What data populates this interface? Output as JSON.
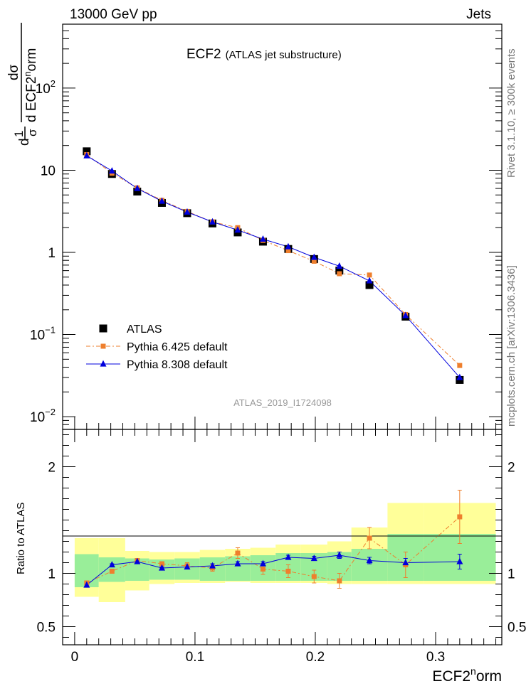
{
  "header": {
    "left": "13000 GeV pp",
    "right": "Jets"
  },
  "side_labels": {
    "rivet": "Rivet 3.1.10, ≥ 300k events",
    "mcplots": "mcplots.cern.ch [arXiv:1306.3436]"
  },
  "title": {
    "main": "ECF2",
    "sub": "(ATLAS jet substructure)"
  },
  "analysis_id": "ATLAS_2019_I1724098",
  "x_axis": {
    "label_base": "ECF2",
    "label_sup": "n",
    "label_rest": "orm",
    "range": [
      -0.01,
      0.355
    ],
    "ticks": [
      0,
      0.1,
      0.2,
      0.3
    ],
    "tick_labels": [
      "0",
      "0.1",
      "0.2",
      "0.3"
    ]
  },
  "y_axis_main": {
    "label": "1/σ dσ/d ECF2norm",
    "label_frac1_num": "1",
    "label_frac1_den": "σ",
    "label_frac2_num": "dσ",
    "label_frac2_den": "d ECF2",
    "label_sup": "n",
    "label_rest": "orm",
    "label_prefix": "d",
    "scale": "log",
    "range": [
      0.007,
      600
    ],
    "tick_labels": [
      {
        "value": 0.01,
        "base": "10",
        "exp": "−2"
      },
      {
        "value": 0.1,
        "base": "10",
        "exp": "−1"
      },
      {
        "value": 1,
        "base": "1",
        "exp": ""
      },
      {
        "value": 10,
        "base": "10",
        "exp": ""
      },
      {
        "value": 100,
        "base": "10",
        "exp": "2"
      }
    ]
  },
  "y_axis_ratio": {
    "label": "Ratio to ATLAS",
    "range": [
      0.33,
      2.35
    ],
    "ticks": [
      0.5,
      1,
      2
    ],
    "tick_labels": [
      "0.5",
      "1",
      "2"
    ]
  },
  "legend": {
    "placement": "lower-left",
    "entries": [
      {
        "label": "ATLAS",
        "series": "atlas"
      },
      {
        "label": "Pythia 6.425 default",
        "series": "py6"
      },
      {
        "label": "Pythia 8.308 default",
        "series": "py8"
      }
    ]
  },
  "colors": {
    "atlas": "#000000",
    "py6": "#ee7f2d",
    "py8": "#0000dd",
    "band_inner": "#99ee99",
    "band_outer": "#ffff99"
  },
  "chart_data": {
    "type": "scatter",
    "title": "ECF2 (ATLAS jet substructure)",
    "xlabel": "ECF2norm",
    "ylabel": "1/σ dσ/d ECF2norm",
    "bins": [
      {
        "lo": 0.0,
        "hi": 0.02
      },
      {
        "lo": 0.02,
        "hi": 0.042
      },
      {
        "lo": 0.042,
        "hi": 0.062
      },
      {
        "lo": 0.062,
        "hi": 0.083
      },
      {
        "lo": 0.083,
        "hi": 0.104
      },
      {
        "lo": 0.104,
        "hi": 0.125
      },
      {
        "lo": 0.125,
        "hi": 0.146
      },
      {
        "lo": 0.146,
        "hi": 0.167
      },
      {
        "lo": 0.167,
        "hi": 0.188
      },
      {
        "lo": 0.188,
        "hi": 0.21
      },
      {
        "lo": 0.21,
        "hi": 0.23
      },
      {
        "lo": 0.23,
        "hi": 0.26
      },
      {
        "lo": 0.26,
        "hi": 0.29
      },
      {
        "lo": 0.29,
        "hi": 0.35
      }
    ],
    "x": [
      0.01,
      0.031,
      0.052,
      0.0725,
      0.0935,
      0.1145,
      0.1355,
      0.1565,
      0.1775,
      0.199,
      0.22,
      0.245,
      0.275,
      0.32
    ],
    "series": [
      {
        "name": "ATLAS",
        "key": "atlas",
        "values": [
          17.0,
          9.0,
          5.5,
          4.0,
          3.0,
          2.25,
          1.75,
          1.35,
          1.1,
          0.83,
          0.6,
          0.4,
          0.165,
          0.028
        ],
        "ratio_band_inner": [
          [
            0.87,
            1.18
          ],
          [
            0.92,
            1.15
          ],
          [
            0.93,
            1.14
          ],
          [
            0.94,
            1.13
          ],
          [
            0.94,
            1.14
          ],
          [
            0.93,
            1.15
          ],
          [
            0.93,
            1.16
          ],
          [
            0.93,
            1.17
          ],
          [
            0.93,
            1.19
          ],
          [
            0.93,
            1.19
          ],
          [
            0.93,
            1.2
          ],
          [
            0.93,
            1.23
          ],
          [
            0.93,
            1.37
          ],
          [
            0.93,
            1.37
          ]
        ],
        "ratio_band_outer": [
          [
            0.78,
            1.33
          ],
          [
            0.73,
            1.33
          ],
          [
            0.84,
            1.21
          ],
          [
            0.9,
            1.2
          ],
          [
            0.91,
            1.2
          ],
          [
            0.91,
            1.22
          ],
          [
            0.92,
            1.23
          ],
          [
            0.91,
            1.24
          ],
          [
            0.91,
            1.27
          ],
          [
            0.91,
            1.27
          ],
          [
            0.9,
            1.3
          ],
          [
            0.9,
            1.43
          ],
          [
            0.9,
            1.66
          ],
          [
            0.9,
            1.66
          ]
        ]
      },
      {
        "name": "Pythia 6.425 default",
        "key": "py6",
        "values": [
          15.5,
          9.2,
          6.1,
          4.3,
          3.15,
          2.35,
          2.0,
          1.4,
          1.05,
          0.78,
          0.55,
          0.53,
          0.175,
          0.042
        ],
        "ratio": [
          0.91,
          1.02,
          1.12,
          1.09,
          1.07,
          1.05,
          1.19,
          1.04,
          1.02,
          0.97,
          0.93,
          1.33,
          1.08,
          1.53
        ],
        "ratio_err": [
          0.02,
          0.02,
          0.02,
          0.02,
          0.03,
          0.03,
          0.05,
          0.05,
          0.06,
          0.06,
          0.07,
          0.1,
          0.12,
          0.25
        ]
      },
      {
        "name": "Pythia 8.308 default",
        "key": "py8",
        "values": [
          15.0,
          9.8,
          6.0,
          4.2,
          3.1,
          2.35,
          1.87,
          1.45,
          1.17,
          0.87,
          0.68,
          0.45,
          0.17,
          0.03
        ],
        "ratio": [
          0.89,
          1.08,
          1.11,
          1.05,
          1.06,
          1.07,
          1.09,
          1.09,
          1.15,
          1.14,
          1.17,
          1.12,
          1.1,
          1.11
        ],
        "ratio_err": [
          0.01,
          0.01,
          0.01,
          0.01,
          0.01,
          0.02,
          0.02,
          0.02,
          0.02,
          0.02,
          0.03,
          0.03,
          0.04,
          0.07
        ]
      }
    ]
  }
}
